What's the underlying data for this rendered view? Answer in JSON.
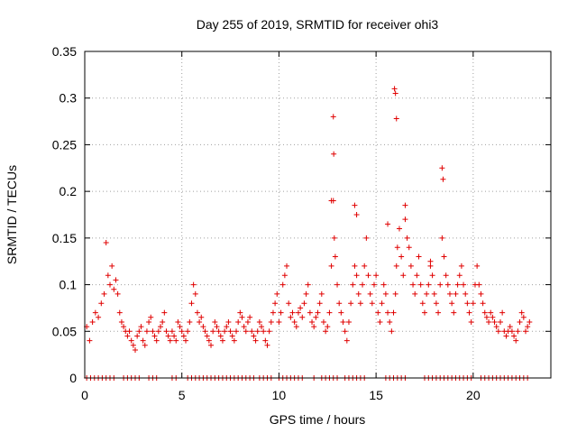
{
  "chart_data": {
    "type": "scatter",
    "title": "Day 255 of 2019, SRMTID for receiver ohi3",
    "xlabel": "GPS time / hours",
    "ylabel": "SRMTID / TECUs",
    "xlim": [
      0,
      24
    ],
    "ylim": [
      0,
      0.35
    ],
    "x_ticks": [
      0,
      5,
      10,
      15,
      20
    ],
    "x_tick_labels": [
      "0",
      "5",
      "10",
      "15",
      "20"
    ],
    "y_ticks": [
      0,
      0.05,
      0.1,
      0.15,
      0.2,
      0.25,
      0.3,
      0.35
    ],
    "y_tick_labels": [
      "0",
      "0.05",
      "0.1",
      "0.15",
      "0.2",
      "0.25",
      "0.3",
      "0.35"
    ],
    "grid": true,
    "marker": "plus",
    "series": [
      {
        "name": "SRMTID",
        "color": "#e00000",
        "x": [
          0.1,
          0.25,
          0.4,
          0.55,
          0.7,
          0.85,
          1.0,
          1.1,
          1.2,
          1.3,
          1.4,
          1.5,
          1.6,
          1.7,
          1.8,
          1.9,
          2.0,
          2.1,
          2.2,
          2.3,
          2.4,
          2.5,
          2.6,
          2.7,
          2.8,
          2.9,
          3.0,
          3.1,
          3.2,
          3.3,
          3.4,
          3.5,
          3.6,
          3.7,
          3.8,
          3.9,
          4.0,
          4.1,
          4.2,
          4.3,
          4.4,
          4.5,
          4.6,
          4.7,
          4.8,
          4.9,
          5.0,
          5.1,
          5.2,
          5.3,
          5.4,
          5.5,
          5.6,
          5.7,
          5.8,
          5.9,
          6.0,
          6.1,
          6.2,
          6.3,
          6.4,
          6.5,
          6.6,
          6.7,
          6.8,
          6.9,
          7.0,
          7.1,
          7.2,
          7.3,
          7.4,
          7.5,
          7.6,
          7.7,
          7.8,
          7.9,
          8.0,
          8.1,
          8.2,
          8.3,
          8.4,
          8.5,
          8.6,
          8.7,
          8.8,
          8.9,
          9.0,
          9.1,
          9.2,
          9.3,
          9.4,
          9.5,
          9.6,
          9.7,
          9.8,
          9.9,
          10.0,
          10.1,
          10.2,
          10.3,
          10.4,
          10.5,
          10.6,
          10.7,
          10.8,
          10.9,
          11.0,
          11.1,
          11.2,
          11.3,
          11.4,
          11.5,
          11.6,
          11.7,
          11.8,
          11.9,
          12.0,
          12.1,
          12.2,
          12.3,
          12.4,
          12.5,
          12.6,
          12.7,
          12.8,
          12.85,
          12.9,
          13.0,
          13.1,
          13.2,
          13.3,
          13.4,
          13.5,
          13.6,
          13.7,
          13.8,
          13.9,
          14.0,
          14.1,
          14.2,
          14.3,
          14.4,
          14.5,
          14.6,
          14.7,
          14.8,
          14.9,
          15.0,
          15.1,
          15.2,
          15.3,
          15.4,
          15.5,
          15.6,
          15.7,
          15.8,
          15.9,
          16.0,
          16.05,
          16.1,
          16.2,
          16.3,
          16.4,
          16.5,
          16.6,
          16.7,
          16.8,
          16.9,
          17.0,
          17.1,
          17.2,
          17.3,
          17.4,
          17.5,
          17.6,
          17.7,
          17.8,
          17.9,
          18.0,
          18.1,
          18.2,
          18.3,
          18.4,
          18.5,
          18.6,
          18.7,
          18.8,
          18.9,
          19.0,
          19.1,
          19.2,
          19.3,
          19.4,
          19.5,
          19.6,
          19.7,
          19.8,
          19.9,
          20.0,
          20.1,
          20.2,
          20.3,
          20.4,
          20.5,
          20.6,
          20.7,
          20.8,
          20.9,
          21.0,
          21.1,
          21.2,
          21.3,
          21.4,
          21.5,
          21.6,
          21.7,
          21.8,
          21.9,
          22.0,
          22.1,
          22.2,
          22.3,
          22.4,
          22.5,
          22.6,
          22.7,
          22.8,
          22.9,
          12.8,
          12.82,
          15.95,
          16.0,
          16.05,
          18.4,
          18.45,
          12.7,
          13.9,
          14.0,
          15.6,
          16.5,
          17.8
        ],
        "y": [
          0.055,
          0.04,
          0.06,
          0.07,
          0.065,
          0.08,
          0.09,
          0.145,
          0.11,
          0.1,
          0.12,
          0.095,
          0.105,
          0.09,
          0.07,
          0.06,
          0.055,
          0.05,
          0.045,
          0.05,
          0.04,
          0.035,
          0.03,
          0.045,
          0.05,
          0.055,
          0.04,
          0.035,
          0.05,
          0.06,
          0.065,
          0.05,
          0.045,
          0.04,
          0.05,
          0.055,
          0.06,
          0.07,
          0.05,
          0.045,
          0.04,
          0.05,
          0.045,
          0.04,
          0.06,
          0.055,
          0.05,
          0.045,
          0.04,
          0.05,
          0.06,
          0.08,
          0.1,
          0.09,
          0.07,
          0.06,
          0.065,
          0.055,
          0.05,
          0.045,
          0.04,
          0.035,
          0.05,
          0.06,
          0.055,
          0.05,
          0.045,
          0.04,
          0.05,
          0.055,
          0.06,
          0.05,
          0.045,
          0.04,
          0.05,
          0.06,
          0.07,
          0.065,
          0.055,
          0.05,
          0.06,
          0.065,
          0.05,
          0.045,
          0.04,
          0.05,
          0.06,
          0.055,
          0.05,
          0.04,
          0.035,
          0.05,
          0.06,
          0.07,
          0.08,
          0.09,
          0.06,
          0.07,
          0.1,
          0.11,
          0.12,
          0.08,
          0.065,
          0.07,
          0.06,
          0.055,
          0.07,
          0.075,
          0.065,
          0.08,
          0.09,
          0.1,
          0.07,
          0.06,
          0.055,
          0.065,
          0.07,
          0.08,
          0.09,
          0.06,
          0.05,
          0.055,
          0.07,
          0.12,
          0.19,
          0.15,
          0.13,
          0.1,
          0.08,
          0.07,
          0.06,
          0.05,
          0.04,
          0.06,
          0.08,
          0.1,
          0.12,
          0.11,
          0.09,
          0.08,
          0.1,
          0.12,
          0.15,
          0.11,
          0.09,
          0.08,
          0.1,
          0.11,
          0.07,
          0.06,
          0.08,
          0.1,
          0.09,
          0.07,
          0.06,
          0.05,
          0.07,
          0.09,
          0.12,
          0.14,
          0.16,
          0.13,
          0.11,
          0.17,
          0.15,
          0.14,
          0.12,
          0.1,
          0.09,
          0.11,
          0.13,
          0.1,
          0.08,
          0.07,
          0.09,
          0.1,
          0.12,
          0.11,
          0.09,
          0.08,
          0.07,
          0.1,
          0.15,
          0.13,
          0.11,
          0.1,
          0.09,
          0.08,
          0.07,
          0.09,
          0.1,
          0.11,
          0.12,
          0.1,
          0.09,
          0.08,
          0.07,
          0.06,
          0.08,
          0.1,
          0.12,
          0.1,
          0.09,
          0.08,
          0.07,
          0.065,
          0.06,
          0.07,
          0.065,
          0.06,
          0.055,
          0.05,
          0.06,
          0.07,
          0.05,
          0.045,
          0.05,
          0.055,
          0.05,
          0.045,
          0.04,
          0.05,
          0.06,
          0.07,
          0.065,
          0.05,
          0.055,
          0.06,
          0.28,
          0.24,
          0.31,
          0.305,
          0.278,
          0.225,
          0.213,
          0.19,
          0.185,
          0.175,
          0.165,
          0.185,
          0.125
        ],
        "zero_x": [
          0.1,
          0.3,
          0.5,
          0.7,
          0.9,
          1.1,
          1.3,
          1.5,
          2.0,
          2.2,
          2.4,
          2.6,
          2.8,
          3.3,
          3.5,
          3.7,
          4.5,
          4.7,
          5.3,
          5.5,
          5.7,
          5.9,
          6.1,
          6.3,
          6.5,
          6.7,
          6.9,
          7.1,
          7.3,
          7.5,
          7.7,
          7.9,
          8.1,
          8.3,
          8.5,
          8.7,
          9.0,
          9.2,
          9.4,
          9.6,
          10.0,
          10.2,
          10.4,
          10.6,
          10.8,
          11.0,
          11.2,
          11.8,
          12.2,
          12.4,
          12.6,
          12.8,
          13.0,
          13.4,
          13.6,
          13.8,
          14.0,
          14.2,
          14.4,
          15.5,
          15.7,
          15.9,
          16.1,
          16.3,
          16.5,
          17.5,
          17.7,
          17.9,
          18.1,
          18.3,
          18.5,
          18.7,
          18.9,
          19.1,
          19.3,
          19.5,
          19.7,
          19.9,
          20.4,
          20.6,
          20.8,
          21.0,
          21.2,
          21.4,
          21.6,
          21.8,
          22.0,
          22.2,
          22.4,
          22.6,
          22.8
        ]
      }
    ]
  }
}
